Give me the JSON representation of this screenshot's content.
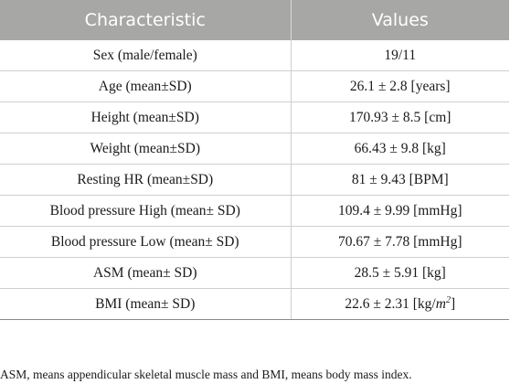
{
  "table": {
    "headers": [
      "Characteristic",
      "Values"
    ],
    "rows": [
      {
        "label": "Sex (male/female)",
        "value": "19/11"
      },
      {
        "label": "Age (mean±SD)",
        "value": "26.1 ± 2.8 [years]"
      },
      {
        "label": "Height (mean±SD)",
        "value": "170.93 ± 8.5 [cm]"
      },
      {
        "label": "Weight (mean±SD)",
        "value": "66.43 ± 9.8 [kg]"
      },
      {
        "label": "Resting HR (mean±SD)",
        "value": "81 ± 9.43 [BPM]"
      },
      {
        "label": "Blood pressure High (mean± SD)",
        "value": "109.4 ± 9.99 [mmHg]"
      },
      {
        "label": "Blood pressure Low (mean± SD)",
        "value": "70.67 ± 7.78 [mmHg]"
      },
      {
        "label": "ASM (mean± SD)",
        "value": "28.5 ± 5.91 [kg]"
      },
      {
        "label": "BMI (mean± SD)",
        "value_prefix": "22.6 ± 2.31 [kg/",
        "value_unit": "m",
        "value_exp": "2",
        "value_suffix": "]"
      }
    ]
  },
  "footnote": "ASM, means appendicular skeletal muscle mass and BMI, means body mass index."
}
